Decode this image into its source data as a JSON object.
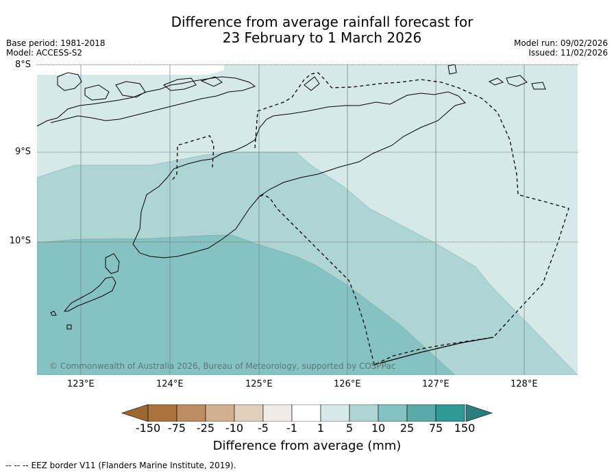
{
  "title": {
    "line1": "Difference from average rainfall forecast for",
    "line2": "23 February to 1 March 2026"
  },
  "meta": {
    "base_period": "Base period: 1981-2018",
    "model": "Model: ACCESS-S2",
    "model_run": "Model run: 09/02/2026",
    "issued": "Issued: 11/02/2026"
  },
  "map": {
    "lat_labels": [
      "8°S",
      "9°S",
      "10°S"
    ],
    "lon_labels": [
      "123°E",
      "124°E",
      "125°E",
      "126°E",
      "127°E",
      "128°E"
    ],
    "copyright": "© Commonwealth of Australia 2026, Bureau of Meteorology, supported by COSPPac",
    "regions": [
      {
        "category": "1 to 5",
        "color": "#d4e9e8"
      },
      {
        "category": "5 to 10",
        "color": "#acd5d4"
      },
      {
        "category": "10 to 25",
        "color": "#85c3c2"
      }
    ]
  },
  "colorbar": {
    "ticks": [
      "-150",
      "-75",
      "-25",
      "-10",
      "-5",
      "-1",
      "1",
      "5",
      "10",
      "25",
      "75",
      "150"
    ],
    "colors": [
      "#a8733d",
      "#bc8d60",
      "#d2b08f",
      "#e2cfbb",
      "#efebe7",
      "#ffffff",
      "#d4e9e8",
      "#acd5d4",
      "#85c3c2",
      "#5aaaa9",
      "#309996"
    ],
    "under_color": "#9c6830",
    "over_color": "#2a7f7d",
    "label": "Difference from average (mm)"
  },
  "footer": {
    "legend_symbol": "--  --  --",
    "legend_text": "EEZ border V11 (Flanders Marine Institute, 2019)."
  }
}
